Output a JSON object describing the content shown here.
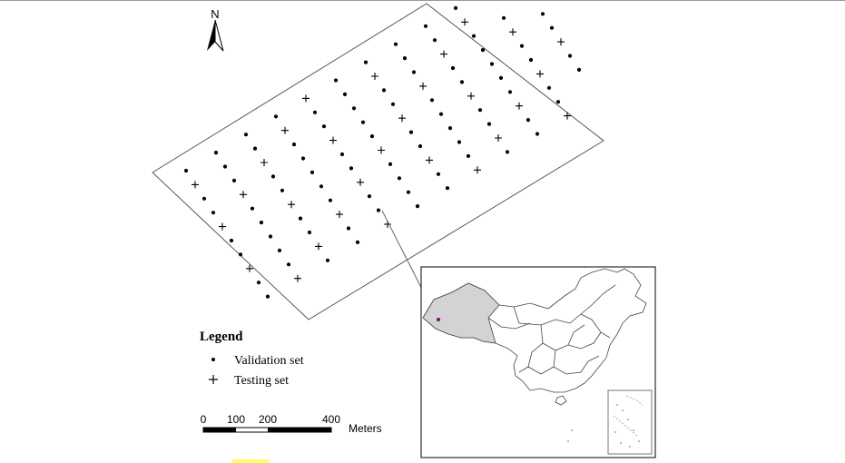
{
  "north_arrow": {
    "label": "N"
  },
  "legend": {
    "title": "Legend",
    "items": [
      {
        "symbol": "dot",
        "label": "Validation set"
      },
      {
        "symbol": "plus",
        "label": "Testing set"
      }
    ]
  },
  "scale_bar": {
    "ticks": [
      "0",
      "100",
      "200",
      "400"
    ],
    "unit": "Meters"
  },
  "colors": {
    "line": "#555555",
    "ink": "#000000",
    "highlight_region": "#d3d3d3",
    "site_marker": "#800080",
    "accent_mark": "#ffff66"
  },
  "icons": {
    "north_arrow": "north-arrow-icon",
    "validation_symbol": "dot-icon",
    "testing_symbol": "plus-icon"
  }
}
